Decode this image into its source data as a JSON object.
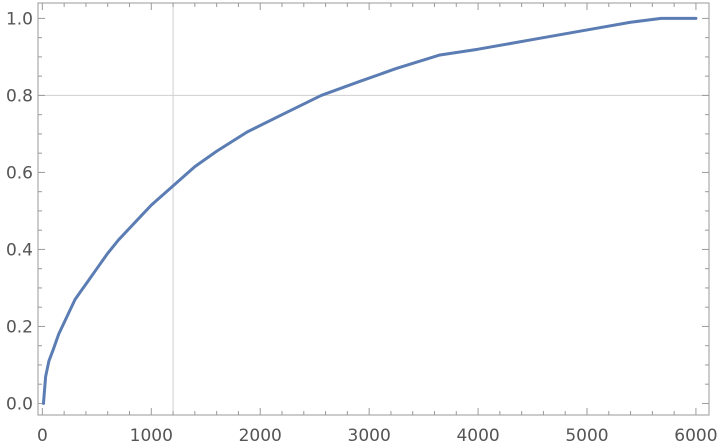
{
  "chart_data": {
    "type": "line",
    "title": "",
    "xlabel": "",
    "ylabel": "",
    "xlim": [
      -40,
      6120
    ],
    "ylim": [
      -0.03,
      1.04
    ],
    "x_ticks": [
      0,
      1000,
      2000,
      3000,
      4000,
      5000,
      6000
    ],
    "x_tick_labels": [
      "0",
      "1000",
      "2000",
      "3000",
      "4000",
      "5000",
      "6000"
    ],
    "y_ticks": [
      0.0,
      0.2,
      0.4,
      0.6,
      0.8,
      1.0
    ],
    "y_tick_labels": [
      "0.0",
      "0.2",
      "0.4",
      "0.6",
      "0.8",
      "1.0"
    ],
    "gridlines": {
      "x": [
        1200
      ],
      "y": [
        0.8
      ]
    },
    "legend": "none",
    "series": [
      {
        "color": "#5b7db3",
        "x": [
          10,
          30,
          60,
          100,
          150,
          200,
          250,
          300,
          350,
          400,
          500,
          600,
          700,
          800,
          900,
          1000,
          1100,
          1200,
          1300,
          1400,
          1600,
          1880,
          2200,
          2560,
          2900,
          3250,
          3650,
          4000,
          4500,
          5000,
          5400,
          5680,
          5800,
          6000
        ],
        "y": [
          0.0,
          0.07,
          0.11,
          0.14,
          0.18,
          0.21,
          0.24,
          0.27,
          0.29,
          0.31,
          0.35,
          0.39,
          0.425,
          0.455,
          0.485,
          0.515,
          0.54,
          0.565,
          0.59,
          0.615,
          0.655,
          0.705,
          0.75,
          0.8,
          0.835,
          0.87,
          0.905,
          0.92,
          0.945,
          0.97,
          0.99,
          1.0,
          1.0,
          1.0
        ]
      }
    ]
  }
}
